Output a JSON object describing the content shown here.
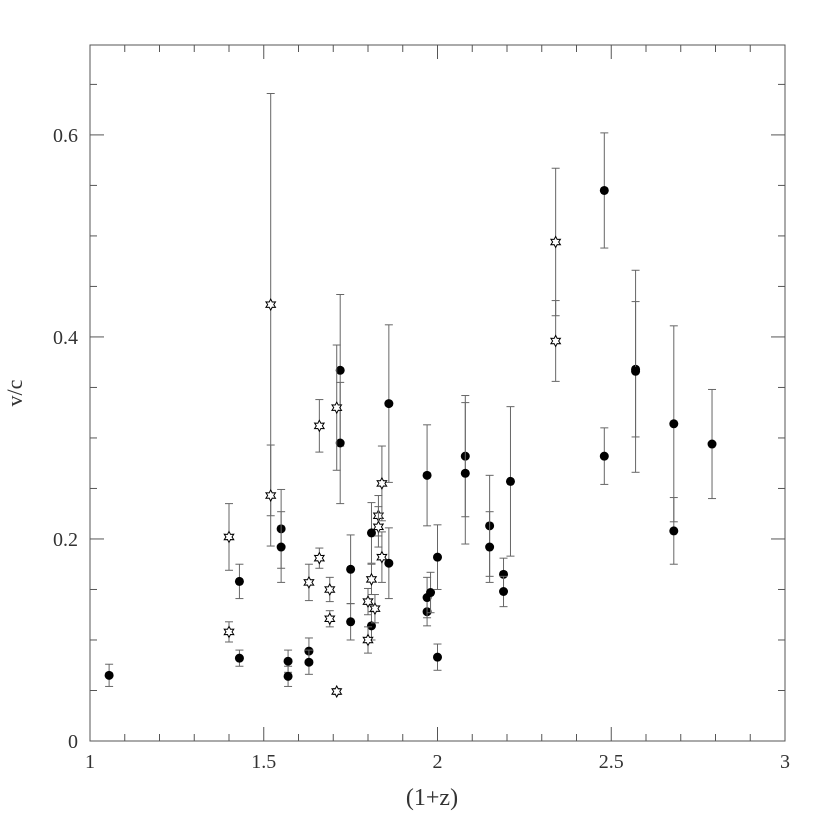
{
  "chart_data": {
    "type": "scatter",
    "x_label": "(1+z)",
    "y_label": "v/c",
    "xlim": [
      1,
      3
    ],
    "ylim": [
      0,
      0.689
    ],
    "xticks": [
      1,
      1.5,
      2,
      2.5,
      3
    ],
    "yticks": [
      0,
      0.2,
      0.4,
      0.6
    ],
    "xminorticks": [
      1.1,
      1.2,
      1.3,
      1.4,
      1.6,
      1.7,
      1.8,
      1.9,
      2.1,
      2.2,
      2.3,
      2.4,
      2.6,
      2.7,
      2.8,
      2.9
    ],
    "yminorticks": [
      0.05,
      0.1,
      0.15,
      0.25,
      0.3,
      0.35,
      0.45,
      0.5,
      0.55,
      0.65
    ],
    "series": [
      {
        "marker": "circle",
        "color": "#000000",
        "x": [
          1.055,
          1.43,
          1.43,
          1.55,
          1.55,
          1.57,
          1.57,
          1.63,
          1.63,
          1.72,
          1.72,
          1.75,
          1.75,
          1.81,
          1.81,
          1.86,
          1.86,
          1.97,
          1.97,
          1.97,
          1.98,
          2.0,
          2.0,
          2.08,
          2.08,
          2.15,
          2.15,
          2.19,
          2.19,
          2.21,
          2.48,
          2.48,
          2.57,
          2.57,
          2.68,
          2.68,
          2.79
        ],
        "values": [
          0.065,
          0.082,
          0.158,
          0.21,
          0.192,
          0.079,
          0.064,
          0.089,
          0.078,
          0.367,
          0.295,
          0.17,
          0.118,
          0.206,
          0.114,
          0.334,
          0.176,
          0.263,
          0.128,
          0.142,
          0.147,
          0.083,
          0.182,
          0.282,
          0.265,
          0.213,
          0.192,
          0.165,
          0.148,
          0.257,
          0.545,
          0.282,
          0.368,
          0.366,
          0.314,
          0.208,
          0.294
        ],
        "errors": [
          0.011,
          0.008,
          0.017,
          0.039,
          0.035,
          0.011,
          0.01,
          0.013,
          0.012,
          0.075,
          0.06,
          0.034,
          0.018,
          0.03,
          0.014,
          0.078,
          0.035,
          0.05,
          0.014,
          0.02,
          0.02,
          0.013,
          0.032,
          0.06,
          0.07,
          0.05,
          0.035,
          0.016,
          0.015,
          0.074,
          0.057,
          0.028,
          0.067,
          0.1,
          0.097,
          0.033,
          0.054
        ]
      },
      {
        "marker": "star",
        "color": "#000000",
        "x": [
          1.4,
          1.4,
          1.52,
          1.52,
          1.63,
          1.66,
          1.66,
          1.69,
          1.69,
          1.71,
          1.71,
          1.8,
          1.8,
          1.81,
          1.82,
          1.83,
          1.83,
          1.84,
          1.84,
          2.34,
          2.34
        ],
        "values": [
          0.202,
          0.108,
          0.432,
          0.243,
          0.157,
          0.312,
          0.181,
          0.15,
          0.121,
          0.33,
          0.049,
          0.138,
          0.1,
          0.16,
          0.131,
          0.223,
          0.212,
          0.255,
          0.182,
          0.494,
          0.396
        ],
        "errors": [
          0.033,
          0.01,
          0.209,
          0.05,
          0.018,
          0.026,
          0.01,
          0.012,
          0.008,
          0.062,
          0.003,
          0.013,
          0.013,
          0.015,
          0.014,
          0.02,
          0.02,
          0.037,
          0.025,
          0.073,
          0.04
        ]
      }
    ]
  }
}
